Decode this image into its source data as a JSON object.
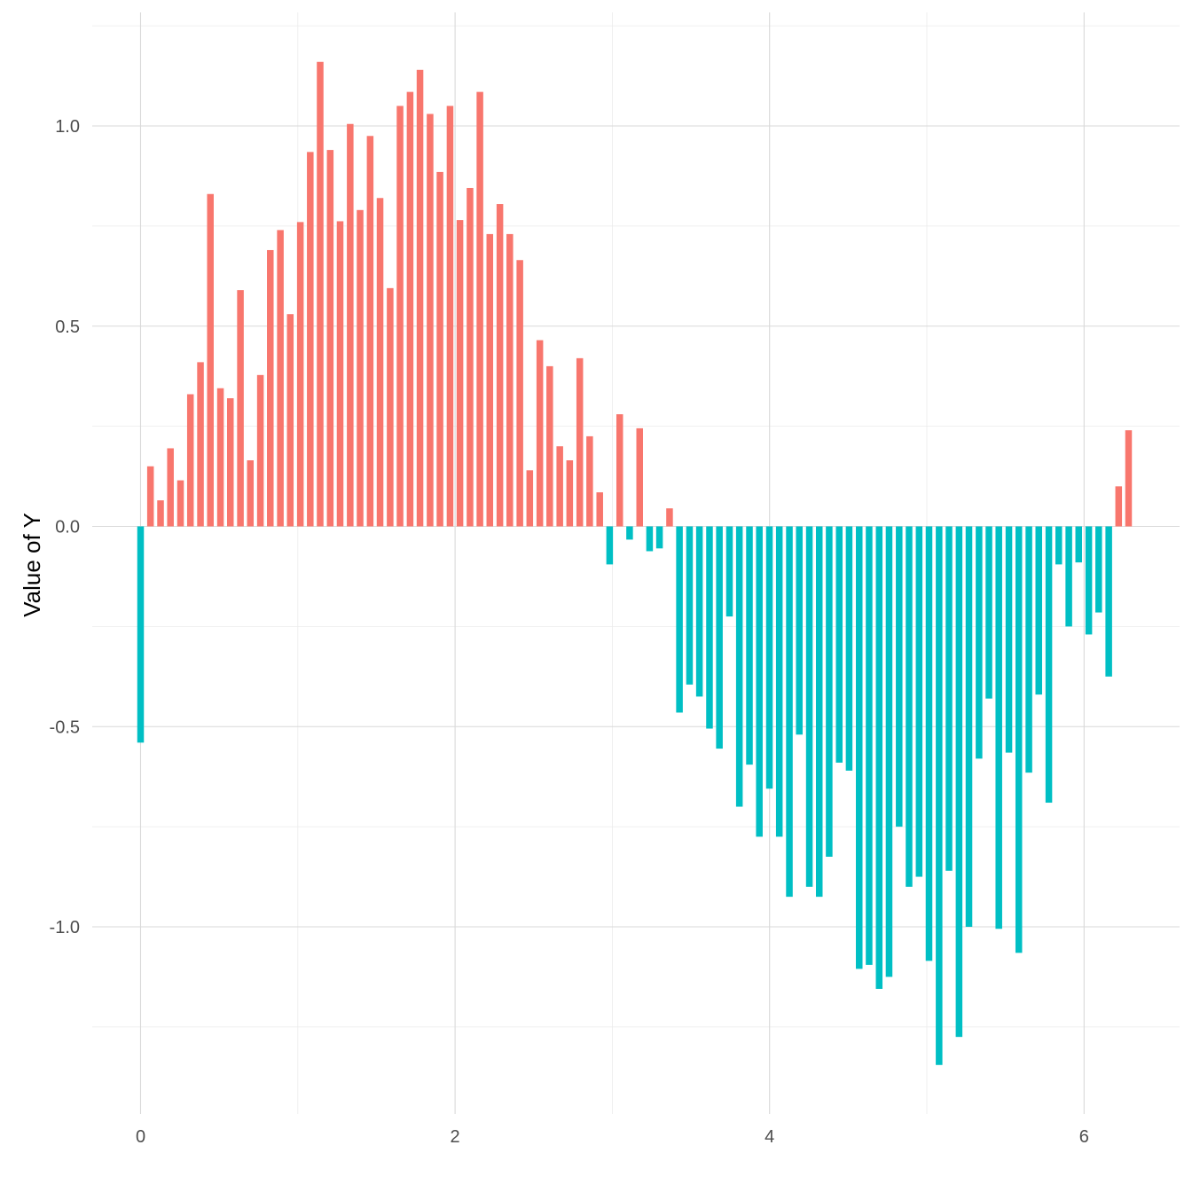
{
  "chart_data": {
    "type": "bar",
    "title": "",
    "xlabel": "",
    "ylabel": "Value of Y",
    "xlim": [
      -0.31,
      6.6
    ],
    "ylim": [
      -1.46,
      1.3
    ],
    "x_ticks": [
      0,
      2,
      4,
      6
    ],
    "x_tick_labels": [
      "0",
      "2",
      "4",
      "6"
    ],
    "y_ticks": [
      1.0,
      0.5,
      0.0,
      -0.5,
      -1.0
    ],
    "y_tick_labels": [
      "1.0",
      "0.5",
      "0.0",
      "-0.5",
      "-1.0"
    ],
    "grid": true,
    "legend": "none",
    "colors": {
      "positive": "#F8766D",
      "negative": "#00BFC4"
    },
    "x": [
      0.0,
      0.063,
      0.127,
      0.19,
      0.254,
      0.317,
      0.381,
      0.444,
      0.508,
      0.571,
      0.635,
      0.698,
      0.762,
      0.825,
      0.889,
      0.952,
      1.016,
      1.079,
      1.142,
      1.206,
      1.269,
      1.333,
      1.396,
      1.46,
      1.523,
      1.587,
      1.65,
      1.714,
      1.777,
      1.841,
      1.904,
      1.968,
      2.031,
      2.095,
      2.158,
      2.221,
      2.285,
      2.348,
      2.412,
      2.475,
      2.539,
      2.602,
      2.666,
      2.729,
      2.793,
      2.856,
      2.92,
      2.983,
      3.047,
      3.11,
      3.174,
      3.237,
      3.3,
      3.364,
      3.427,
      3.491,
      3.554,
      3.618,
      3.681,
      3.745,
      3.808,
      3.872,
      3.935,
      3.999,
      4.062,
      4.126,
      4.189,
      4.253,
      4.316,
      4.379,
      4.443,
      4.506,
      4.57,
      4.633,
      4.697,
      4.76,
      4.824,
      4.887,
      4.951,
      5.014,
      5.078,
      5.141,
      5.205,
      5.268,
      5.332,
      5.395,
      5.458,
      5.522,
      5.585,
      5.649,
      5.712,
      5.776,
      5.839,
      5.903,
      5.966,
      6.03,
      6.093,
      6.157,
      6.22,
      6.283
    ],
    "values": [
      -0.54,
      0.15,
      0.065,
      0.195,
      0.115,
      0.33,
      0.41,
      0.83,
      0.345,
      0.32,
      0.59,
      0.165,
      0.378,
      0.69,
      0.74,
      0.53,
      0.76,
      0.935,
      1.16,
      0.94,
      0.762,
      1.005,
      0.79,
      0.975,
      0.82,
      0.595,
      1.05,
      1.085,
      1.14,
      1.03,
      0.885,
      1.05,
      0.765,
      0.845,
      1.085,
      0.73,
      0.805,
      0.73,
      0.665,
      0.14,
      0.465,
      0.4,
      0.2,
      0.165,
      0.42,
      0.225,
      0.085,
      -0.095,
      0.28,
      -0.033,
      0.245,
      -0.062,
      -0.055,
      0.045,
      -0.465,
      -0.395,
      -0.425,
      -0.505,
      -0.555,
      -0.225,
      -0.7,
      -0.595,
      -0.775,
      -0.655,
      -0.775,
      -0.925,
      -0.52,
      -0.9,
      -0.925,
      -0.825,
      -0.59,
      -0.61,
      -1.105,
      -1.095,
      -1.155,
      -1.125,
      -0.75,
      -0.9,
      -0.875,
      -1.085,
      -1.345,
      -0.86,
      -1.275,
      -1.0,
      -0.58,
      -0.43,
      -1.005,
      -0.565,
      -1.065,
      -0.615,
      -0.42,
      -0.69,
      -0.095,
      -0.25,
      -0.09,
      -0.27,
      -0.215,
      -0.375,
      0.1,
      0.24
    ]
  }
}
